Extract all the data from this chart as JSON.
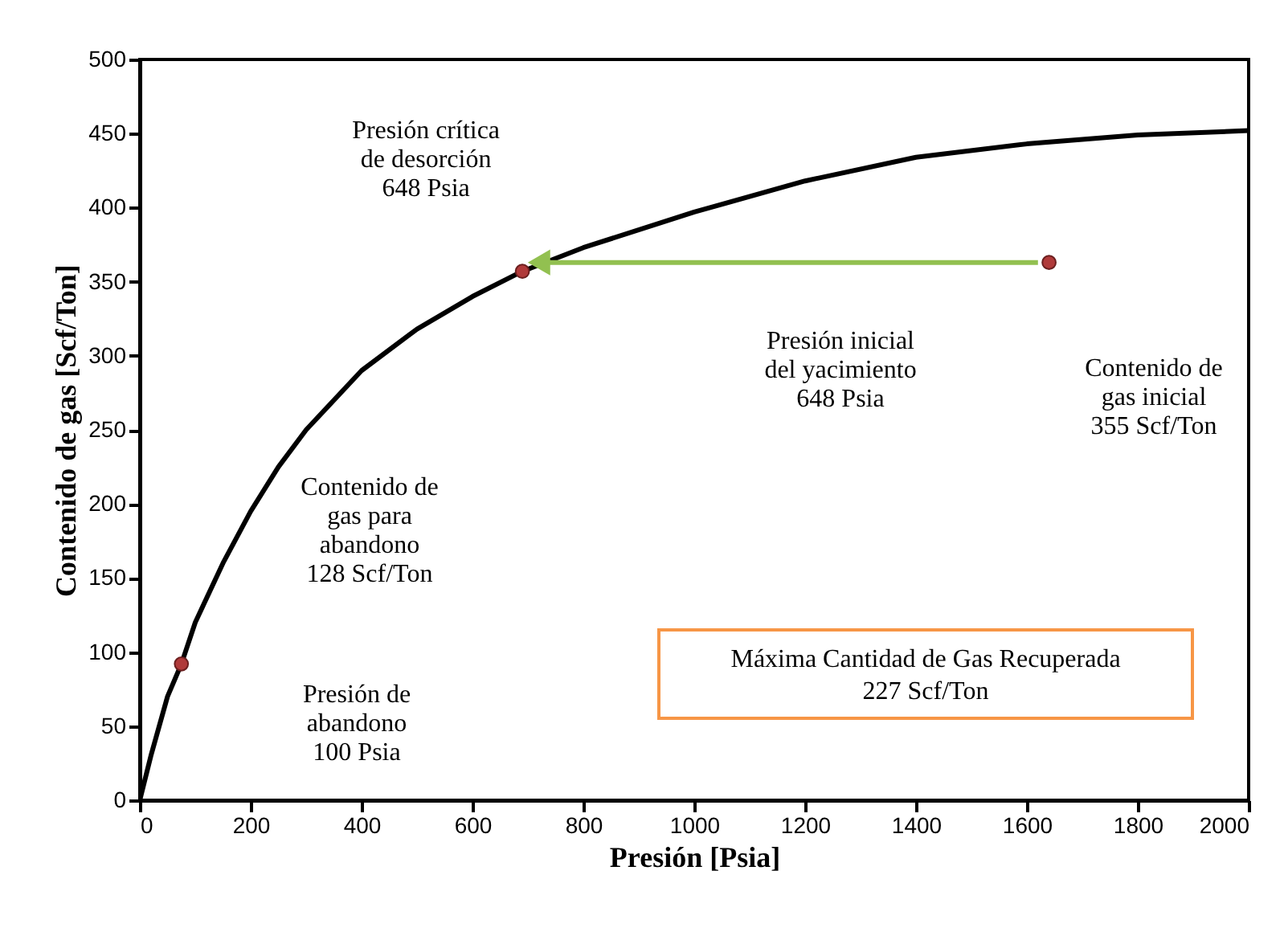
{
  "chart_data": {
    "type": "line",
    "xlabel": "Presión [Psia]",
    "ylabel": "Contenido de gas [Scf/Ton]",
    "xlim": [
      0,
      2000
    ],
    "ylim": [
      0,
      500
    ],
    "xticks": [
      0,
      200,
      400,
      600,
      800,
      1000,
      1200,
      1400,
      1600,
      1800,
      2000
    ],
    "yticks": [
      0,
      50,
      100,
      150,
      200,
      250,
      300,
      350,
      400,
      450,
      500
    ],
    "grid": false,
    "series": [
      {
        "color": "#000000",
        "marker": "none",
        "x": [
          0,
          20,
          50,
          75,
          100,
          150,
          200,
          250,
          300,
          400,
          500,
          600,
          690,
          800,
          1000,
          1200,
          1400,
          1600,
          1800,
          2000
        ],
        "values": [
          0,
          30,
          70,
          92,
          120,
          160,
          195,
          225,
          250,
          290,
          318,
          340,
          357,
          373,
          397,
          418,
          434,
          443,
          449,
          452
        ]
      },
      {
        "type": "line",
        "color": "#92c050",
        "marker": "triangle",
        "x": [
          1620,
          720
        ],
        "values": [
          363,
          363
        ]
      },
      {
        "type": "scatter",
        "color": "#b03a3a",
        "marker": "circle",
        "x": [
          75,
          690,
          1640
        ],
        "values": [
          92,
          357,
          363
        ]
      }
    ],
    "annotations": [
      {
        "text": "Presión crítica\nde desorción\n648 Psia",
        "x": 690,
        "y": 357
      },
      "Contenido de\ngas para\nabandono\n128 Scf/Ton",
      "Presión de\nabandono\n100 Psia",
      "Presión inicial\ndel yacimiento\n648 Psia",
      "Contenido de\ngas inicial\n355 Scf/Ton",
      "Máxima  Cantidad de Gas Recuperada\n227 Scf/Ton"
    ]
  }
}
